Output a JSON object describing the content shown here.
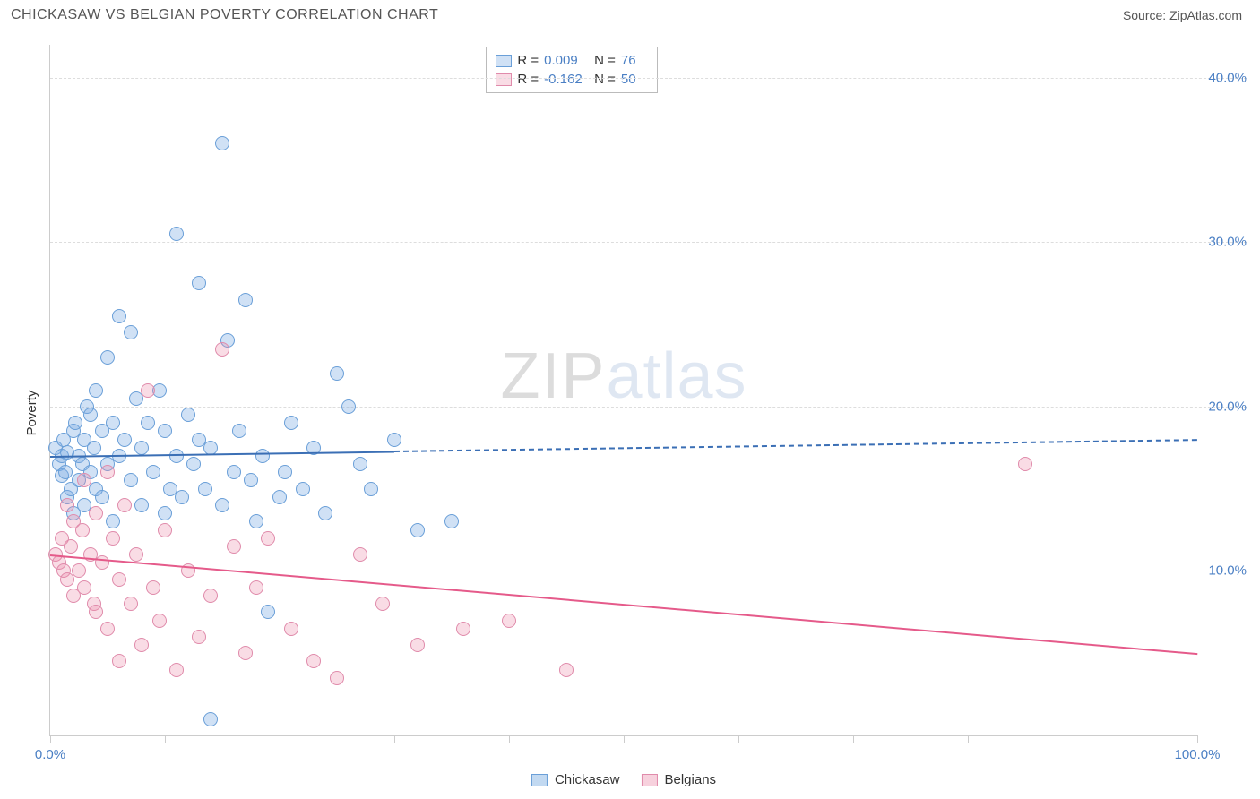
{
  "header": {
    "title": "CHICKASAW VS BELGIAN POVERTY CORRELATION CHART",
    "source_label": "Source: ",
    "source_name": "ZipAtlas.com"
  },
  "chart": {
    "type": "scatter",
    "ylabel": "Poverty",
    "watermark": {
      "part1": "ZIP",
      "part2": "atlas"
    },
    "background_color": "#ffffff",
    "grid_color": "#dddddd",
    "axis_color": "#cccccc",
    "tick_label_color": "#4a7fc4",
    "xlim": [
      0,
      100
    ],
    "ylim": [
      0,
      42
    ],
    "x_ticks": [
      0,
      10,
      20,
      30,
      40,
      50,
      60,
      70,
      80,
      90,
      100
    ],
    "x_tick_labels": {
      "0": "0.0%",
      "100": "100.0%"
    },
    "y_gridlines": [
      10,
      20,
      30,
      40
    ],
    "y_tick_labels": {
      "10": "10.0%",
      "20": "20.0%",
      "30": "30.0%",
      "40": "40.0%"
    },
    "marker_radius": 8,
    "marker_stroke_width": 1.5,
    "series": [
      {
        "name": "Chickasaw",
        "fill": "rgba(120,170,225,0.35)",
        "stroke": "#6a9fd8",
        "R": "0.009",
        "N": "76",
        "trend": {
          "y_at_x0": 17.0,
          "y_at_x100": 18.0,
          "solid_until_x": 30,
          "color": "#3b6fb5",
          "width": 2
        },
        "points": [
          [
            0.5,
            17.5
          ],
          [
            0.8,
            16.5
          ],
          [
            1.0,
            17.0
          ],
          [
            1.0,
            15.8
          ],
          [
            1.2,
            18.0
          ],
          [
            1.3,
            16.0
          ],
          [
            1.5,
            17.2
          ],
          [
            1.5,
            14.5
          ],
          [
            1.8,
            15.0
          ],
          [
            2.0,
            18.5
          ],
          [
            2.0,
            13.5
          ],
          [
            2.2,
            19.0
          ],
          [
            2.5,
            17.0
          ],
          [
            2.5,
            15.5
          ],
          [
            2.8,
            16.5
          ],
          [
            3.0,
            18.0
          ],
          [
            3.0,
            14.0
          ],
          [
            3.2,
            20.0
          ],
          [
            3.5,
            19.5
          ],
          [
            3.5,
            16.0
          ],
          [
            3.8,
            17.5
          ],
          [
            4.0,
            15.0
          ],
          [
            4.0,
            21.0
          ],
          [
            4.5,
            18.5
          ],
          [
            4.5,
            14.5
          ],
          [
            5.0,
            23.0
          ],
          [
            5.0,
            16.5
          ],
          [
            5.5,
            19.0
          ],
          [
            5.5,
            13.0
          ],
          [
            6.0,
            25.5
          ],
          [
            6.0,
            17.0
          ],
          [
            6.5,
            18.0
          ],
          [
            7.0,
            24.5
          ],
          [
            7.0,
            15.5
          ],
          [
            7.5,
            20.5
          ],
          [
            8.0,
            17.5
          ],
          [
            8.0,
            14.0
          ],
          [
            8.5,
            19.0
          ],
          [
            9.0,
            16.0
          ],
          [
            9.5,
            21.0
          ],
          [
            10.0,
            18.5
          ],
          [
            10.0,
            13.5
          ],
          [
            10.5,
            15.0
          ],
          [
            11.0,
            30.5
          ],
          [
            11.0,
            17.0
          ],
          [
            11.5,
            14.5
          ],
          [
            12.0,
            19.5
          ],
          [
            12.5,
            16.5
          ],
          [
            13.0,
            27.5
          ],
          [
            13.0,
            18.0
          ],
          [
            13.5,
            15.0
          ],
          [
            14.0,
            1.0
          ],
          [
            14.0,
            17.5
          ],
          [
            15.0,
            36.0
          ],
          [
            15.0,
            14.0
          ],
          [
            15.5,
            24.0
          ],
          [
            16.0,
            16.0
          ],
          [
            16.5,
            18.5
          ],
          [
            17.0,
            26.5
          ],
          [
            17.5,
            15.5
          ],
          [
            18.0,
            13.0
          ],
          [
            18.5,
            17.0
          ],
          [
            19.0,
            7.5
          ],
          [
            20.0,
            14.5
          ],
          [
            20.5,
            16.0
          ],
          [
            21.0,
            19.0
          ],
          [
            22.0,
            15.0
          ],
          [
            23.0,
            17.5
          ],
          [
            24.0,
            13.5
          ],
          [
            25.0,
            22.0
          ],
          [
            26.0,
            20.0
          ],
          [
            27.0,
            16.5
          ],
          [
            28.0,
            15.0
          ],
          [
            30.0,
            18.0
          ],
          [
            32.0,
            12.5
          ],
          [
            35.0,
            13.0
          ]
        ]
      },
      {
        "name": "Belgians",
        "fill": "rgba(235,140,170,0.30)",
        "stroke": "#e08bab",
        "R": "-0.162",
        "N": "50",
        "trend": {
          "y_at_x0": 11.0,
          "y_at_x100": 5.0,
          "solid_until_x": 100,
          "color": "#e55a8a",
          "width": 2
        },
        "points": [
          [
            0.5,
            11.0
          ],
          [
            0.8,
            10.5
          ],
          [
            1.0,
            12.0
          ],
          [
            1.2,
            10.0
          ],
          [
            1.5,
            14.0
          ],
          [
            1.5,
            9.5
          ],
          [
            1.8,
            11.5
          ],
          [
            2.0,
            13.0
          ],
          [
            2.0,
            8.5
          ],
          [
            2.5,
            10.0
          ],
          [
            2.8,
            12.5
          ],
          [
            3.0,
            9.0
          ],
          [
            3.0,
            15.5
          ],
          [
            3.5,
            11.0
          ],
          [
            3.8,
            8.0
          ],
          [
            4.0,
            13.5
          ],
          [
            4.0,
            7.5
          ],
          [
            4.5,
            10.5
          ],
          [
            5.0,
            16.0
          ],
          [
            5.0,
            6.5
          ],
          [
            5.5,
            12.0
          ],
          [
            6.0,
            9.5
          ],
          [
            6.0,
            4.5
          ],
          [
            6.5,
            14.0
          ],
          [
            7.0,
            8.0
          ],
          [
            7.5,
            11.0
          ],
          [
            8.0,
            5.5
          ],
          [
            8.5,
            21.0
          ],
          [
            9.0,
            9.0
          ],
          [
            9.5,
            7.0
          ],
          [
            10.0,
            12.5
          ],
          [
            11.0,
            4.0
          ],
          [
            12.0,
            10.0
          ],
          [
            13.0,
            6.0
          ],
          [
            14.0,
            8.5
          ],
          [
            15.0,
            23.5
          ],
          [
            16.0,
            11.5
          ],
          [
            17.0,
            5.0
          ],
          [
            18.0,
            9.0
          ],
          [
            19.0,
            12.0
          ],
          [
            21.0,
            6.5
          ],
          [
            23.0,
            4.5
          ],
          [
            25.0,
            3.5
          ],
          [
            27.0,
            11.0
          ],
          [
            29.0,
            8.0
          ],
          [
            32.0,
            5.5
          ],
          [
            36.0,
            6.5
          ],
          [
            40.0,
            7.0
          ],
          [
            45.0,
            4.0
          ],
          [
            85.0,
            16.5
          ]
        ]
      }
    ],
    "legend_top": {
      "R_label": "R =",
      "N_label": "N ="
    },
    "legend_bottom": [
      {
        "label": "Chickasaw",
        "fill": "rgba(120,170,225,0.45)",
        "stroke": "#6a9fd8"
      },
      {
        "label": "Belgians",
        "fill": "rgba(235,140,170,0.40)",
        "stroke": "#e08bab"
      }
    ]
  }
}
